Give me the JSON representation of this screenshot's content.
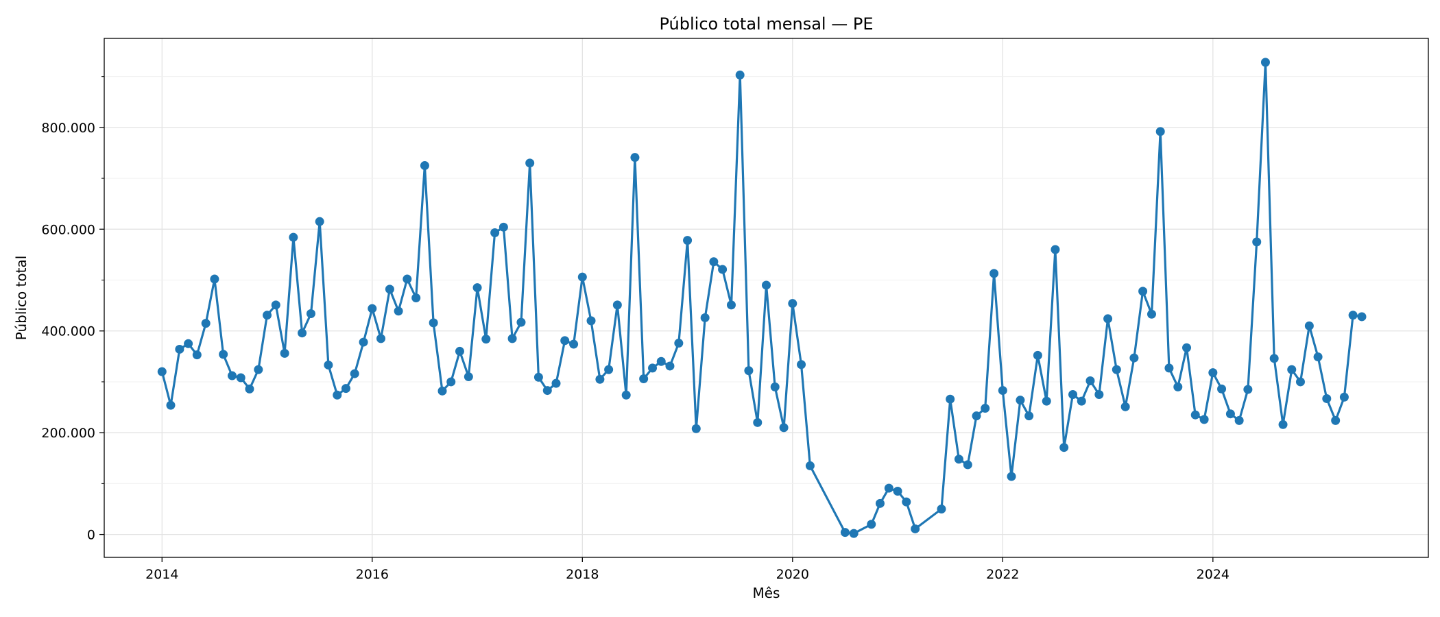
{
  "colors": {
    "series": "#1f77b4",
    "grid": "#e3e3e3",
    "axis": "#000000"
  },
  "chart_data": {
    "type": "line",
    "title": "Público total mensal — PE",
    "xlabel": "Mês",
    "ylabel": "Público total",
    "grid": true,
    "marker": "circle",
    "xlim": [
      2013.45,
      2026.05
    ],
    "ylim": [
      -45000,
      975000
    ],
    "xticks": [
      {
        "value": 2014,
        "label": "2014"
      },
      {
        "value": 2016,
        "label": "2016"
      },
      {
        "value": 2018,
        "label": "2018"
      },
      {
        "value": 2020,
        "label": "2020"
      },
      {
        "value": 2022,
        "label": "2022"
      },
      {
        "value": 2024,
        "label": "2024"
      }
    ],
    "yticks": [
      {
        "value": 0,
        "label": "0"
      },
      {
        "value": 200000,
        "label": "200.000"
      },
      {
        "value": 400000,
        "label": "400.000"
      },
      {
        "value": 600000,
        "label": "600.000"
      },
      {
        "value": 800000,
        "label": "800.000"
      }
    ],
    "yminor": [
      100000,
      300000,
      500000,
      700000,
      900000
    ],
    "series": [
      {
        "name": "Público total",
        "x": [
          2014.0,
          2014.083,
          2014.167,
          2014.25,
          2014.333,
          2014.417,
          2014.5,
          2014.583,
          2014.667,
          2014.75,
          2014.833,
          2014.917,
          2015.0,
          2015.083,
          2015.167,
          2015.25,
          2015.333,
          2015.417,
          2015.5,
          2015.583,
          2015.667,
          2015.75,
          2015.833,
          2015.917,
          2016.0,
          2016.083,
          2016.167,
          2016.25,
          2016.333,
          2016.417,
          2016.5,
          2016.583,
          2016.667,
          2016.75,
          2016.833,
          2016.917,
          2017.0,
          2017.083,
          2017.167,
          2017.25,
          2017.333,
          2017.417,
          2017.5,
          2017.583,
          2017.667,
          2017.75,
          2017.833,
          2017.917,
          2018.0,
          2018.083,
          2018.167,
          2018.25,
          2018.333,
          2018.417,
          2018.5,
          2018.583,
          2018.667,
          2018.75,
          2018.833,
          2018.917,
          2019.0,
          2019.083,
          2019.167,
          2019.25,
          2019.333,
          2019.417,
          2019.5,
          2019.583,
          2019.667,
          2019.75,
          2019.833,
          2019.917,
          2020.0,
          2020.083,
          2020.167,
          2020.5,
          2020.583,
          2020.75,
          2020.833,
          2020.917,
          2021.0,
          2021.083,
          2021.167,
          2021.417,
          2021.5,
          2021.583,
          2021.667,
          2021.75,
          2021.833,
          2021.917,
          2022.0,
          2022.083,
          2022.167,
          2022.25,
          2022.333,
          2022.417,
          2022.5,
          2022.583,
          2022.667,
          2022.75,
          2022.833,
          2022.917,
          2023.0,
          2023.083,
          2023.167,
          2023.25,
          2023.333,
          2023.417,
          2023.5,
          2023.583,
          2023.667,
          2023.75,
          2023.833,
          2023.917,
          2024.0,
          2024.083,
          2024.167,
          2024.25,
          2024.333,
          2024.417,
          2024.5,
          2024.583,
          2024.667,
          2024.75,
          2024.833,
          2024.917,
          2025.0,
          2025.083,
          2025.167,
          2025.25,
          2025.333,
          2025.417
        ],
        "y": [
          320000,
          254000,
          364000,
          375000,
          353000,
          415000,
          502000,
          354000,
          312000,
          308000,
          286000,
          324000,
          431000,
          451000,
          356000,
          584000,
          396000,
          434000,
          615000,
          333000,
          274000,
          287000,
          316000,
          378000,
          444000,
          385000,
          482000,
          439000,
          502000,
          465000,
          725000,
          416000,
          282000,
          300000,
          360000,
          310000,
          485000,
          384000,
          593000,
          604000,
          385000,
          417000,
          730000,
          309000,
          283000,
          297000,
          381000,
          374000,
          506000,
          420000,
          305000,
          324000,
          451000,
          274000,
          741000,
          306000,
          327000,
          340000,
          331000,
          376000,
          578000,
          208000,
          426000,
          536000,
          521000,
          451000,
          903000,
          322000,
          220000,
          490000,
          290000,
          210000,
          454000,
          334000,
          135000,
          4000,
          2000,
          20000,
          61000,
          91000,
          85000,
          64000,
          11000,
          50000,
          266000,
          148000,
          137000,
          233000,
          248000,
          513000,
          283000,
          114000,
          264000,
          233000,
          352000,
          262000,
          560000,
          171000,
          275000,
          262000,
          302000,
          275000,
          424000,
          324000,
          251000,
          347000,
          478000,
          433000,
          792000,
          327000,
          290000,
          367000,
          235000,
          226000,
          318000,
          286000,
          237000,
          224000,
          285000,
          575000,
          928000,
          346000,
          216000,
          324000,
          300000,
          410000,
          349000,
          267000,
          224000,
          270000,
          431000,
          428000
        ]
      }
    ]
  }
}
